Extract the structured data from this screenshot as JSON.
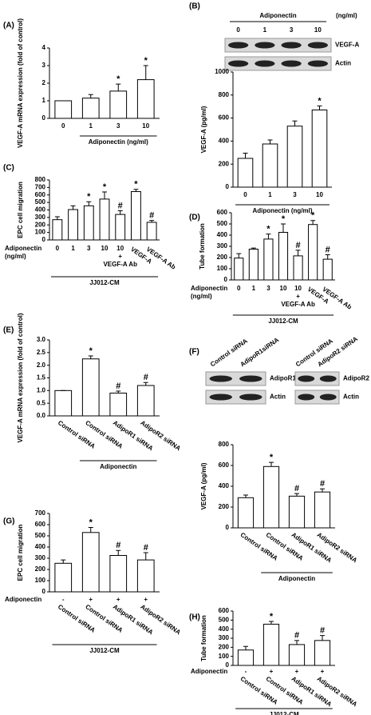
{
  "chart_data": [
    {
      "type": "bar",
      "panel_label": "(A)",
      "ylabel": "VEGF-A mRNA expression (fold of control)",
      "categories": [
        "0",
        "1",
        "3",
        "10"
      ],
      "values": [
        1.0,
        1.15,
        1.55,
        2.2
      ],
      "errors": [
        0,
        0.2,
        0.4,
        0.8
      ],
      "annotations": [
        null,
        null,
        "*",
        "*"
      ],
      "ylim": [
        0,
        4
      ],
      "yticks": [
        0,
        1,
        2,
        3,
        4
      ],
      "group": {
        "label": "Adiponectin (ng/ml)",
        "from": 1,
        "to": 3
      }
    },
    {
      "type": "bar",
      "panel_label": "(B)",
      "ylabel": "VEGF-A (pg/ml)",
      "blots": [
        {
          "header": "Adiponectin",
          "unit": "(ng/ml)",
          "lanes": [
            "0",
            "1",
            "3",
            "10"
          ],
          "rows": [
            "VEGF-A",
            "Actin"
          ]
        }
      ],
      "categories": [
        "0",
        "1",
        "3",
        "10"
      ],
      "values": [
        250,
        375,
        530,
        670
      ],
      "errors": [
        45,
        35,
        45,
        35
      ],
      "annotations": [
        null,
        null,
        null,
        "*"
      ],
      "ylim": [
        0,
        1000
      ],
      "yticks": [
        0,
        200,
        400,
        600,
        800,
        1000
      ],
      "group": {
        "label": "Adiponectin (ng/ml)",
        "from": 0,
        "to": 3
      }
    },
    {
      "type": "bar",
      "panel_label": "(C)",
      "ylabel": "EPC cell migration",
      "row_label": [
        "Adiponectin",
        "(ng/ml)"
      ],
      "categories": [
        "0",
        "1",
        "3",
        "10",
        "10",
        "VEGF-A",
        "VEGF-A Ab"
      ],
      "plus": [
        null,
        null,
        null,
        null,
        "+",
        null,
        null
      ],
      "plus_label": "VEGF-A Ab",
      "values": [
        270,
        405,
        455,
        545,
        340,
        645,
        235
      ],
      "errors": [
        40,
        50,
        55,
        95,
        50,
        30,
        25
      ],
      "annotations": [
        null,
        null,
        "*",
        "*",
        "#",
        "*",
        "#"
      ],
      "ylim": [
        0,
        800
      ],
      "yticks": [
        0,
        100,
        200,
        300,
        400,
        500,
        600,
        700,
        800
      ],
      "group": {
        "label": "JJ012-CM",
        "from": 0,
        "to": 6
      }
    },
    {
      "type": "bar",
      "panel_label": "(D)",
      "ylabel": "Tube formation",
      "row_label": [
        "Adiponectin",
        "(ng/ml)"
      ],
      "categories": [
        "0",
        "1",
        "3",
        "10",
        "10",
        "VEGF-A",
        "VEGF-A Ab"
      ],
      "plus": [
        null,
        null,
        null,
        null,
        "+",
        null,
        null
      ],
      "plus_label": "VEGF-A Ab",
      "values": [
        195,
        275,
        365,
        425,
        215,
        495,
        185
      ],
      "errors": [
        40,
        10,
        45,
        75,
        50,
        35,
        40
      ],
      "annotations": [
        null,
        null,
        "*",
        "*",
        "#",
        "*",
        "#"
      ],
      "ylim": [
        0,
        600
      ],
      "yticks": [
        0,
        100,
        200,
        300,
        400,
        500,
        600
      ],
      "group": {
        "label": "JJ012-CM",
        "from": 0,
        "to": 6
      }
    },
    {
      "type": "bar",
      "panel_label": "(E)",
      "ylabel": "VEGF-A mRNA expression (fold of control)",
      "categories": [
        "Control siRNA",
        "Control siRNA",
        "AdipoR1 siRNA",
        "AdipoR2 siRNA"
      ],
      "values": [
        1.0,
        2.25,
        0.9,
        1.2
      ],
      "errors": [
        0,
        0.12,
        0.08,
        0.12
      ],
      "annotations": [
        null,
        "*",
        "#",
        "#"
      ],
      "ylim": [
        0,
        3
      ],
      "yticks": [
        {
          "value": 0,
          "label": "0.0"
        },
        0.5,
        {
          "value": 1,
          "label": "1.0"
        },
        1.5,
        {
          "value": 2,
          "label": "2.0"
        },
        2.5,
        {
          "value": 3,
          "label": "3.0"
        }
      ],
      "group": {
        "label": "Adiponectin",
        "from": 1,
        "to": 3
      }
    },
    {
      "type": "bar",
      "panel_label": "(F)",
      "ylabel": "VEGF-A (pg/ml)",
      "blots": [
        {
          "lanes": [
            "Control siRNA",
            "AdipoR1siRNA"
          ],
          "rows": [
            "AdipoR1",
            "Actin"
          ]
        },
        {
          "lanes": [
            "Control siRNA",
            "AdipoR2 siRNA"
          ],
          "rows": [
            "AdipoR2",
            "Actin"
          ]
        }
      ],
      "categories": [
        "Control siRNA",
        "Control siRNA",
        "AdipoR1 siRNA",
        "AdipoR2 siRNA"
      ],
      "values": [
        290,
        590,
        305,
        345
      ],
      "errors": [
        25,
        40,
        25,
        30
      ],
      "annotations": [
        null,
        "*",
        "#",
        "#"
      ],
      "ylim": [
        0,
        800
      ],
      "yticks": [
        0,
        200,
        400,
        600,
        800
      ],
      "group": {
        "label": "Adiponectin",
        "from": 1,
        "to": 3
      }
    },
    {
      "type": "bar",
      "panel_label": "(G)",
      "ylabel": "EPC cell migration",
      "row_label": [
        "Adiponectin"
      ],
      "row": [
        "-",
        "+",
        "+",
        "+"
      ],
      "categories": [
        "Control siRNA",
        "Control siRNA",
        "AdipoR1 siRNA",
        "AdipoR2 siRNA"
      ],
      "values": [
        255,
        530,
        325,
        285
      ],
      "errors": [
        30,
        45,
        45,
        65
      ],
      "annotations": [
        null,
        "*",
        "#",
        "#"
      ],
      "ylim": [
        0,
        700
      ],
      "yticks": [
        0,
        100,
        200,
        300,
        400,
        500,
        600,
        700
      ],
      "group": {
        "label": "JJ012-CM",
        "from": 0,
        "to": 3
      }
    },
    {
      "type": "bar",
      "panel_label": "(H)",
      "ylabel": "Tube formation",
      "row_label": [
        "Adiponectin"
      ],
      "row": [
        "-",
        "+",
        "+",
        "+"
      ],
      "categories": [
        "Control siRNA",
        "Control siRNA",
        "AdipoR1 siRNA",
        "AdipoR2 siRNA"
      ],
      "values": [
        170,
        455,
        230,
        275
      ],
      "errors": [
        40,
        30,
        45,
        55
      ],
      "annotations": [
        null,
        "*",
        "#",
        "#"
      ],
      "ylim": [
        0,
        600
      ],
      "yticks": [
        0,
        100,
        200,
        300,
        400,
        500,
        600
      ],
      "group": {
        "label": "JJ012-CM",
        "from": 0,
        "to": 3
      }
    }
  ]
}
